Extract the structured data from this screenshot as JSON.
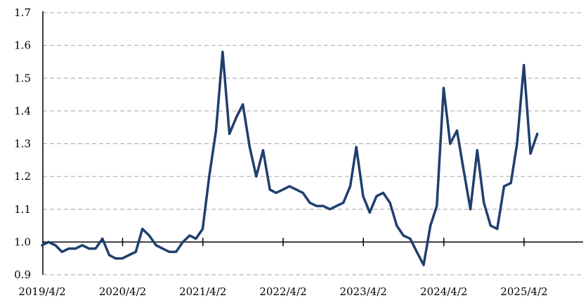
{
  "chart_data": {
    "type": "line",
    "title": "",
    "xlabel": "",
    "ylabel": "",
    "ylim": [
      0.9,
      1.7
    ],
    "y_ticks": [
      "0.9",
      "1.0",
      "1.1",
      "1.2",
      "1.3",
      "1.4",
      "1.5",
      "1.6",
      "1.7"
    ],
    "grid": "horizontal dashed",
    "legend": "none",
    "x_tick_labels": [
      "2019/4/2",
      "2020/4/2",
      "2021/4/2",
      "2022/4/2",
      "2023/4/2",
      "2024/4/2",
      "2025/4/2"
    ],
    "line_color": "#1f3f6e",
    "series": [
      {
        "x": [
          "2019-04-02",
          "2019-05-01",
          "2019-06-01",
          "2019-07-01",
          "2019-08-01",
          "2019-09-01",
          "2019-10-01",
          "2019-11-01",
          "2019-12-01",
          "2020-01-01",
          "2020-02-01",
          "2020-03-01",
          "2020-04-01",
          "2020-05-01",
          "2020-06-01",
          "2020-07-01",
          "2020-08-01",
          "2020-09-01",
          "2020-10-01",
          "2020-11-01",
          "2020-12-01",
          "2021-01-01",
          "2021-02-01",
          "2021-03-01",
          "2021-04-01",
          "2021-05-01",
          "2021-06-01",
          "2021-07-01",
          "2021-08-01",
          "2021-09-01",
          "2021-10-01",
          "2021-11-01",
          "2021-12-01",
          "2022-01-01",
          "2022-02-01",
          "2022-03-01",
          "2022-04-01",
          "2022-05-01",
          "2022-06-01",
          "2022-07-01",
          "2022-08-01",
          "2022-09-01",
          "2022-10-01",
          "2022-11-01",
          "2022-12-01",
          "2023-01-01",
          "2023-02-01",
          "2023-03-01",
          "2023-04-01",
          "2023-05-01",
          "2023-06-01",
          "2023-07-01",
          "2023-08-01",
          "2023-09-01",
          "2023-10-01",
          "2023-11-01",
          "2023-12-01",
          "2024-01-01",
          "2024-02-01",
          "2024-03-01",
          "2024-04-01",
          "2024-05-01",
          "2024-06-01",
          "2024-07-01",
          "2024-08-01",
          "2024-09-01",
          "2024-10-01",
          "2024-11-01",
          "2024-12-01",
          "2025-01-01",
          "2025-02-01",
          "2025-03-01",
          "2025-04-01",
          "2025-05-01",
          "2025-06-01"
        ],
        "values": [
          0.99,
          1.0,
          0.99,
          0.97,
          0.98,
          0.98,
          0.99,
          0.98,
          0.98,
          1.01,
          0.96,
          0.95,
          0.95,
          0.96,
          0.97,
          1.04,
          1.02,
          0.99,
          0.98,
          0.97,
          0.97,
          1.0,
          1.02,
          1.01,
          1.04,
          1.2,
          1.34,
          1.58,
          1.33,
          1.38,
          1.42,
          1.29,
          1.2,
          1.28,
          1.16,
          1.15,
          1.16,
          1.17,
          1.16,
          1.15,
          1.12,
          1.11,
          1.11,
          1.1,
          1.11,
          1.12,
          1.17,
          1.29,
          1.14,
          1.09,
          1.14,
          1.15,
          1.12,
          1.05,
          1.02,
          1.01,
          0.97,
          0.93,
          1.05,
          1.11,
          1.47,
          1.3,
          1.34,
          1.22,
          1.1,
          1.28,
          1.12,
          1.05,
          1.04,
          1.17,
          1.18,
          1.3,
          1.54,
          1.27,
          1.33
        ]
      }
    ]
  }
}
